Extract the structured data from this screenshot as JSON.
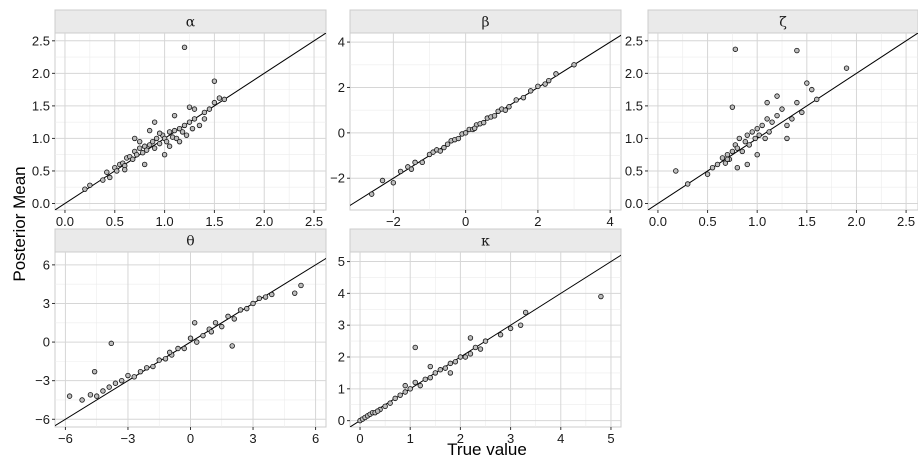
{
  "figure": {
    "xlabel": "True value",
    "ylabel": "Posterior Mean"
  },
  "chart_data": [
    {
      "type": "scatter",
      "title": "α",
      "xlim": [
        -0.1,
        2.62
      ],
      "ylim": [
        -0.1,
        2.62
      ],
      "xticks": [
        0.0,
        0.5,
        1.0,
        1.5,
        2.0,
        2.5
      ],
      "yticks": [
        0.0,
        0.5,
        1.0,
        1.5,
        2.0,
        2.5
      ],
      "xtick_labels": [
        "0.0",
        "0.5",
        "1.0",
        "1.5",
        "2.0",
        "2.5"
      ],
      "ytick_labels": [
        "0.0",
        "0.5",
        "1.0",
        "1.5",
        "2.0",
        "2.5"
      ],
      "reference_line": "y = x",
      "x": [
        0.2,
        0.25,
        0.38,
        0.42,
        0.45,
        0.5,
        0.52,
        0.55,
        0.58,
        0.6,
        0.62,
        0.65,
        0.68,
        0.7,
        0.72,
        0.75,
        0.78,
        0.8,
        0.82,
        0.85,
        0.88,
        0.9,
        0.92,
        0.95,
        0.98,
        1.0,
        1.02,
        1.05,
        1.08,
        1.1,
        1.12,
        1.15,
        1.18,
        1.2,
        1.22,
        1.25,
        1.28,
        1.3,
        1.35,
        1.4,
        1.45,
        1.5,
        1.55,
        1.6,
        1.2,
        0.7,
        0.9,
        1.0,
        1.1,
        1.3,
        0.8,
        0.6,
        1.4,
        1.5,
        0.95,
        1.05,
        0.85,
        1.15,
        0.75,
        1.25
      ],
      "y": [
        0.22,
        0.28,
        0.36,
        0.48,
        0.4,
        0.55,
        0.5,
        0.6,
        0.62,
        0.58,
        0.7,
        0.72,
        0.68,
        0.8,
        0.75,
        0.85,
        0.78,
        0.88,
        0.82,
        0.9,
        0.95,
        0.85,
        1.0,
        0.92,
        1.05,
        1.0,
        0.95,
        1.1,
        1.02,
        1.12,
        1.0,
        1.15,
        1.1,
        1.2,
        1.05,
        1.25,
        1.15,
        1.3,
        1.2,
        1.4,
        1.45,
        1.55,
        1.62,
        1.6,
        2.4,
        1.0,
        1.25,
        0.75,
        1.35,
        1.45,
        0.6,
        0.52,
        1.3,
        1.88,
        1.08,
        0.88,
        1.12,
        0.95,
        0.95,
        1.48
      ]
    },
    {
      "type": "scatter",
      "title": "β",
      "xlim": [
        -3.2,
        4.3
      ],
      "ylim": [
        -3.4,
        4.4
      ],
      "xticks": [
        -2,
        0,
        2,
        4
      ],
      "yticks": [
        -2,
        0,
        2,
        4
      ],
      "xtick_labels": [
        "−2",
        "0",
        "2",
        "4"
      ],
      "ytick_labels": [
        "−2",
        "0",
        "2",
        "4"
      ],
      "reference_line": "y = x",
      "x": [
        -2.6,
        -2.3,
        -2.0,
        -1.8,
        -1.6,
        -1.4,
        -1.2,
        -1.0,
        -0.9,
        -0.8,
        -0.6,
        -0.5,
        -0.4,
        -0.3,
        -0.2,
        -0.1,
        0.0,
        0.1,
        0.2,
        0.3,
        0.4,
        0.5,
        0.6,
        0.7,
        0.8,
        0.9,
        1.0,
        1.2,
        1.4,
        1.6,
        1.8,
        2.0,
        2.2,
        2.5,
        3.0,
        -1.5,
        -0.7,
        0.25,
        1.1,
        2.3
      ],
      "y": [
        -2.7,
        -2.1,
        -2.2,
        -1.7,
        -1.5,
        -1.3,
        -1.3,
        -0.95,
        -0.85,
        -0.75,
        -0.65,
        -0.5,
        -0.35,
        -0.3,
        -0.25,
        -0.05,
        0.0,
        0.15,
        0.15,
        0.35,
        0.4,
        0.45,
        0.65,
        0.7,
        0.75,
        0.95,
        1.05,
        1.15,
        1.45,
        1.55,
        1.85,
        2.05,
        2.15,
        2.6,
        3.0,
        -1.6,
        -0.8,
        0.2,
        1.0,
        2.3
      ]
    },
    {
      "type": "scatter",
      "title": "ζ",
      "xlim": [
        -0.1,
        2.62
      ],
      "ylim": [
        -0.1,
        2.62
      ],
      "xticks": [
        0.0,
        0.5,
        1.0,
        1.5,
        2.0,
        2.5
      ],
      "yticks": [
        0.0,
        0.5,
        1.0,
        1.5,
        2.0,
        2.5
      ],
      "xtick_labels": [
        "0.0",
        "0.5",
        "1.0",
        "1.5",
        "2.0",
        "2.5"
      ],
      "ytick_labels": [
        "0.0",
        "0.5",
        "1.0",
        "1.5",
        "2.0",
        "2.5"
      ],
      "reference_line": "y = x",
      "x": [
        0.18,
        0.3,
        0.5,
        0.55,
        0.6,
        0.65,
        0.68,
        0.7,
        0.72,
        0.75,
        0.78,
        0.8,
        0.82,
        0.85,
        0.88,
        0.9,
        0.92,
        0.95,
        0.98,
        1.0,
        1.02,
        1.05,
        1.08,
        1.1,
        1.12,
        1.15,
        1.2,
        1.25,
        1.3,
        1.35,
        1.4,
        1.45,
        1.5,
        1.55,
        1.6,
        1.9,
        0.78,
        1.4,
        0.75,
        1.0,
        1.2,
        0.9,
        0.8,
        1.1,
        1.3,
        0.7
      ],
      "y": [
        0.5,
        0.3,
        0.45,
        0.55,
        0.6,
        0.7,
        0.62,
        0.75,
        0.68,
        0.8,
        0.9,
        0.85,
        1.0,
        0.8,
        0.95,
        1.05,
        0.9,
        1.1,
        1.0,
        1.15,
        1.05,
        1.2,
        1.0,
        1.3,
        1.1,
        1.25,
        1.35,
        1.45,
        1.2,
        1.3,
        1.55,
        1.4,
        1.85,
        1.75,
        1.6,
        2.08,
        2.37,
        2.35,
        1.48,
        0.75,
        1.65,
        0.6,
        0.55,
        1.55,
        1.0,
        0.68
      ]
    },
    {
      "type": "scatter",
      "title": "θ",
      "xlim": [
        -6.5,
        6.5
      ],
      "ylim": [
        -6.6,
        7.0
      ],
      "xticks": [
        -6,
        -3,
        0,
        3,
        6
      ],
      "yticks": [
        -6,
        -3,
        0,
        3,
        6
      ],
      "xtick_labels": [
        "−6",
        "−3",
        "0",
        "3",
        "6"
      ],
      "ytick_labels": [
        "−6",
        "−3",
        "0",
        "3",
        "6"
      ],
      "reference_line": "y = x",
      "x": [
        -5.8,
        -5.2,
        -4.8,
        -4.5,
        -4.2,
        -3.9,
        -3.6,
        -3.3,
        -3.0,
        -2.7,
        -2.4,
        -2.1,
        -1.8,
        -1.5,
        -1.2,
        -0.9,
        -0.6,
        -0.3,
        0.0,
        0.3,
        0.6,
        0.9,
        1.2,
        1.5,
        1.8,
        2.1,
        2.4,
        2.7,
        3.0,
        3.3,
        3.6,
        3.9,
        5.0,
        5.3,
        -3.8,
        -4.6,
        0.2,
        2.0,
        -1.0,
        1.0
      ],
      "y": [
        -4.2,
        -4.5,
        -4.1,
        -4.2,
        -3.8,
        -3.5,
        -3.2,
        -3.0,
        -2.6,
        -2.7,
        -2.3,
        -2.0,
        -1.9,
        -1.4,
        -1.3,
        -1.0,
        -0.5,
        -0.5,
        0.3,
        0.0,
        0.5,
        1.0,
        1.5,
        1.2,
        2.0,
        1.8,
        2.5,
        2.6,
        3.0,
        3.4,
        3.5,
        3.7,
        3.8,
        4.4,
        -0.1,
        -2.3,
        1.5,
        -0.3,
        -0.8,
        0.8
      ]
    },
    {
      "type": "scatter",
      "title": "κ",
      "xlim": [
        -0.2,
        5.2
      ],
      "ylim": [
        -0.2,
        5.3
      ],
      "xticks": [
        0,
        1,
        2,
        3,
        4,
        5
      ],
      "yticks": [
        0,
        1,
        2,
        3,
        4,
        5
      ],
      "xtick_labels": [
        "0",
        "1",
        "2",
        "3",
        "4",
        "5"
      ],
      "ytick_labels": [
        "0",
        "1",
        "2",
        "3",
        "4",
        "5"
      ],
      "reference_line": "y = x",
      "x": [
        0.0,
        0.05,
        0.1,
        0.15,
        0.2,
        0.25,
        0.3,
        0.4,
        0.5,
        0.6,
        0.7,
        0.8,
        0.9,
        1.0,
        1.1,
        1.2,
        1.3,
        1.4,
        1.5,
        1.6,
        1.7,
        1.8,
        1.9,
        2.0,
        2.1,
        2.2,
        2.3,
        2.4,
        2.5,
        2.8,
        3.0,
        3.2,
        3.3,
        4.8,
        1.1,
        1.4,
        0.9,
        1.8,
        2.2,
        0.35
      ],
      "y": [
        0.0,
        0.05,
        0.1,
        0.15,
        0.2,
        0.25,
        0.25,
        0.35,
        0.45,
        0.55,
        0.7,
        0.8,
        0.9,
        1.0,
        1.2,
        1.1,
        1.3,
        1.35,
        1.5,
        1.6,
        1.65,
        1.8,
        1.85,
        2.0,
        2.0,
        2.1,
        2.3,
        2.25,
        2.5,
        2.7,
        2.9,
        3.0,
        3.4,
        3.9,
        2.3,
        1.7,
        1.1,
        1.5,
        2.6,
        0.3
      ]
    }
  ]
}
